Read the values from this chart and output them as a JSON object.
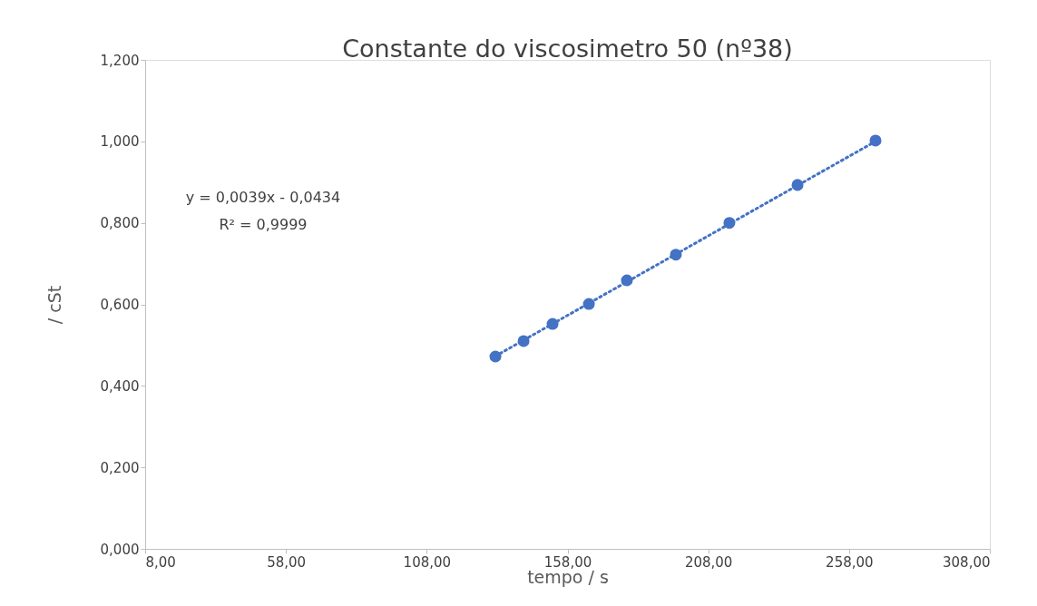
{
  "chart_data": {
    "type": "scatter",
    "title": "Constante do viscosimetro 50 (nº38)",
    "xlabel": "tempo / s",
    "ylabel": "/ cSt",
    "annotations": [
      "y = 0,0039x - 0,0434",
      "R² = 0,9999"
    ],
    "series": [
      {
        "color": "#4472c4",
        "marker": "circle",
        "x": [
          132.4,
          142.4,
          152.7,
          165.6,
          179.1,
          196.5,
          215.5,
          239.7,
          267.4
        ],
        "values": [
          0.472,
          0.51,
          0.552,
          0.601,
          0.659,
          0.722,
          0.8,
          0.893,
          1.002
        ]
      },
      {
        "type": "line",
        "color": "#4472c4",
        "line_style": "dotted",
        "x": [
          132.4,
          267.4
        ],
        "values": [
          0.473,
          1.0
        ]
      }
    ],
    "xlim": [
      8,
      308
    ],
    "ylim": [
      0,
      1.2
    ],
    "xticks": [
      {
        "value": 8,
        "label": "8,00"
      },
      {
        "value": 58,
        "label": "58,00"
      },
      {
        "value": 108,
        "label": "108,00"
      },
      {
        "value": 158,
        "label": "158,00"
      },
      {
        "value": 208,
        "label": "208,00"
      },
      {
        "value": 258,
        "label": "258,00"
      },
      {
        "value": 308,
        "label": "308,00"
      }
    ],
    "yticks": [
      {
        "value": 0,
        "label": "0,000"
      },
      {
        "value": 0.2,
        "label": "0,200"
      },
      {
        "value": 0.4,
        "label": "0,400"
      },
      {
        "value": 0.6,
        "label": "0,600"
      },
      {
        "value": 0.8,
        "label": "0,800"
      },
      {
        "value": 1.0,
        "label": "1,000"
      },
      {
        "value": 1.2,
        "label": "1,200"
      }
    ],
    "grid": false
  }
}
